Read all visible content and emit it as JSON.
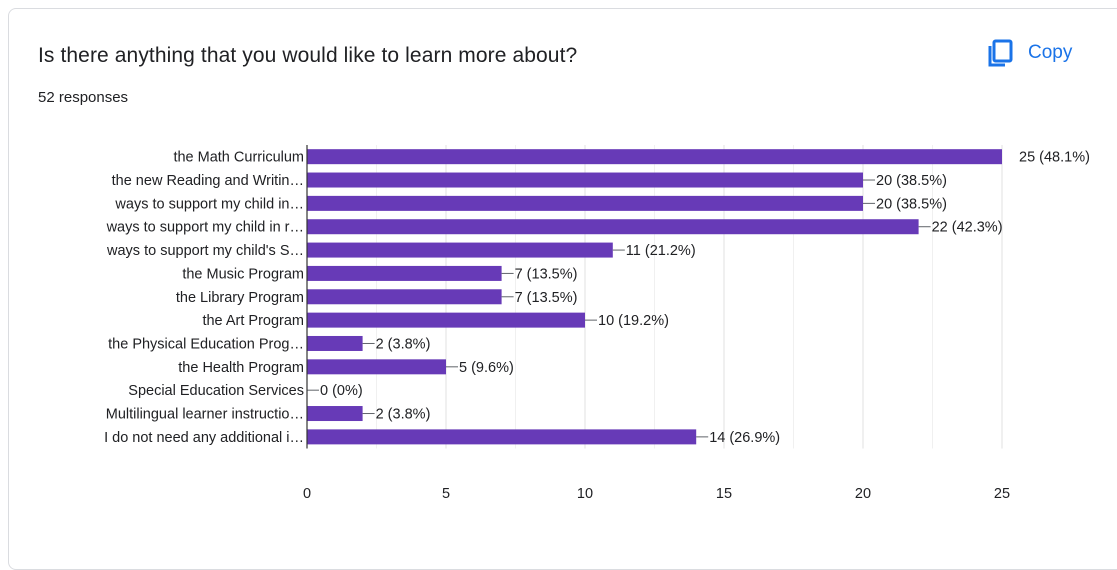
{
  "question": {
    "title": "Is there anything that you would like to learn more about?",
    "response_count": "52 responses"
  },
  "toolbar": {
    "copy_label": "Copy",
    "copy_icon": "copy-icon"
  },
  "colors": {
    "bar": "#673ab7",
    "accent": "#1a73e8",
    "grid": "#e0e0e0",
    "text": "#202124"
  },
  "chart_data": {
    "type": "bar",
    "orientation": "horizontal",
    "categories": [
      "the Math Curriculum",
      "the new Reading and Writin…",
      "ways to support my child in…",
      "ways to support my child in r…",
      "ways to support my child's S…",
      "the Music Program",
      "the Library Program",
      "the Art Program",
      "the Physical Education Prog…",
      "the Health Program",
      "Special Education Services",
      "Multilingual learner instructio…",
      "I do not need any additional i…"
    ],
    "values": [
      25,
      20,
      20,
      22,
      11,
      7,
      7,
      10,
      2,
      5,
      0,
      2,
      14
    ],
    "data_labels": [
      "25 (48.1%)",
      "20 (38.5%)",
      "20 (38.5%)",
      "22 (42.3%)",
      "11 (21.2%)",
      "7 (13.5%)",
      "7 (13.5%)",
      "10 (19.2%)",
      "2 (3.8%)",
      "5 (9.6%)",
      "0 (0%)",
      "2 (3.8%)",
      "14 (26.9%)"
    ],
    "xticks": [
      "0",
      "5",
      "10",
      "15",
      "20",
      "25"
    ],
    "xlim": [
      0,
      25
    ],
    "grid": true,
    "legend": "none"
  }
}
